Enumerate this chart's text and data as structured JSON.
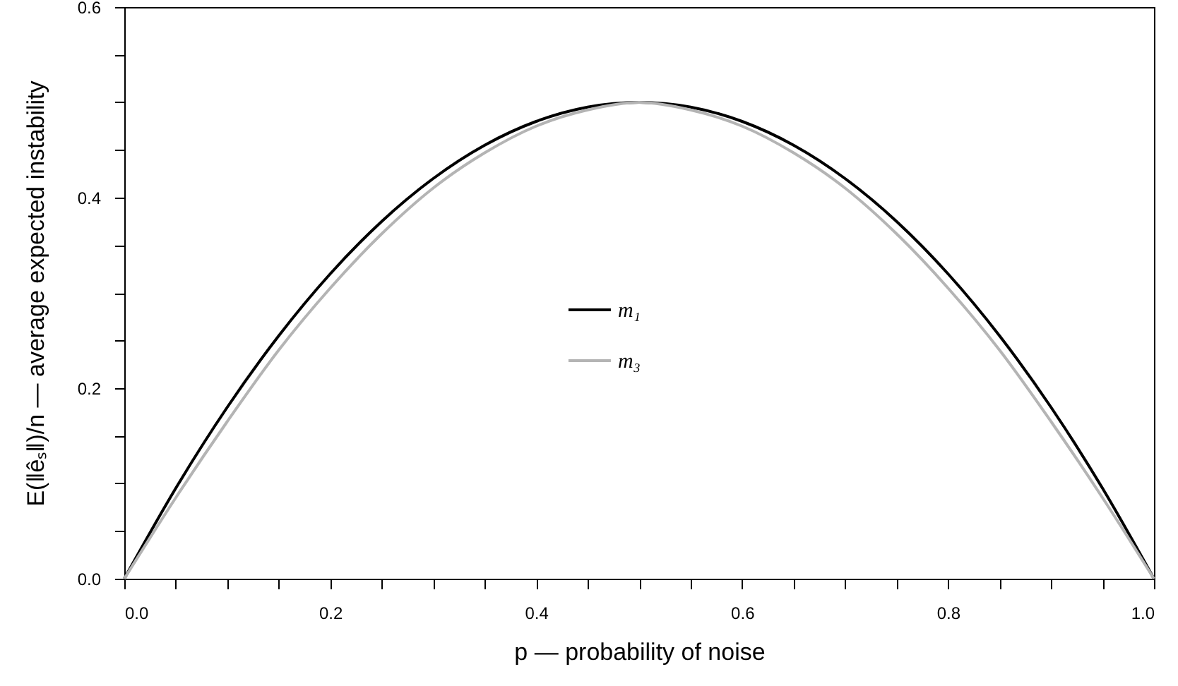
{
  "chart_data": {
    "type": "line",
    "xlabel": "p — probability of noise",
    "ylabel": "E(‖êₛ‖)/n  — average expected instability",
    "x": [
      0,
      0.05,
      0.1,
      0.15,
      0.2,
      0.25,
      0.3,
      0.35,
      0.4,
      0.45,
      0.5,
      0.55,
      0.6,
      0.65,
      0.7,
      0.75,
      0.8,
      0.85,
      0.9,
      0.95,
      1.0
    ],
    "series": [
      {
        "name": "m₁",
        "color": "#000000",
        "values": [
          0,
          0.095,
          0.18,
          0.255,
          0.32,
          0.375,
          0.42,
          0.455,
          0.48,
          0.495,
          0.5,
          0.495,
          0.48,
          0.455,
          0.42,
          0.375,
          0.32,
          0.255,
          0.18,
          0.095,
          0
        ]
      },
      {
        "name": "m₃",
        "color": "#b4b4b4",
        "values": [
          0,
          0.085,
          0.165,
          0.24,
          0.305,
          0.362,
          0.41,
          0.447,
          0.475,
          0.492,
          0.5,
          0.492,
          0.475,
          0.447,
          0.41,
          0.362,
          0.305,
          0.24,
          0.165,
          0.085,
          0
        ]
      }
    ],
    "xlim": [
      0,
      1.0
    ],
    "ylim": [
      0,
      0.6
    ],
    "xticks": [
      {
        "value": 0,
        "label": "0.0"
      },
      {
        "value": 0.05,
        "label": null
      },
      {
        "value": 0.1,
        "label": null
      },
      {
        "value": 0.15,
        "label": null
      },
      {
        "value": 0.2,
        "label": "0.2"
      },
      {
        "value": 0.25,
        "label": null
      },
      {
        "value": 0.3,
        "label": null
      },
      {
        "value": 0.35,
        "label": null
      },
      {
        "value": 0.4,
        "label": "0.4"
      },
      {
        "value": 0.45,
        "label": null
      },
      {
        "value": 0.5,
        "label": null
      },
      {
        "value": 0.55,
        "label": null
      },
      {
        "value": 0.6,
        "label": "0.6"
      },
      {
        "value": 0.65,
        "label": null
      },
      {
        "value": 0.7,
        "label": null
      },
      {
        "value": 0.75,
        "label": null
      },
      {
        "value": 0.8,
        "label": "0.8"
      },
      {
        "value": 0.85,
        "label": null
      },
      {
        "value": 0.9,
        "label": null
      },
      {
        "value": 0.95,
        "label": null
      },
      {
        "value": 1.0,
        "label": "1.0"
      }
    ],
    "yticks": [
      {
        "value": 0,
        "label": "0.0"
      },
      {
        "value": 0.05,
        "label": null
      },
      {
        "value": 0.1,
        "label": null
      },
      {
        "value": 0.15,
        "label": null
      },
      {
        "value": 0.2,
        "label": "0.2"
      },
      {
        "value": 0.25,
        "label": null
      },
      {
        "value": 0.3,
        "label": null
      },
      {
        "value": 0.35,
        "label": null
      },
      {
        "value": 0.4,
        "label": "0.4"
      },
      {
        "value": 0.45,
        "label": null
      },
      {
        "value": 0.5,
        "label": null
      },
      {
        "value": 0.55,
        "label": null
      },
      {
        "value": 0.6,
        "label": "0.6"
      }
    ],
    "grid": false,
    "legend": "center",
    "marker": "none",
    "line_style": "solid"
  }
}
